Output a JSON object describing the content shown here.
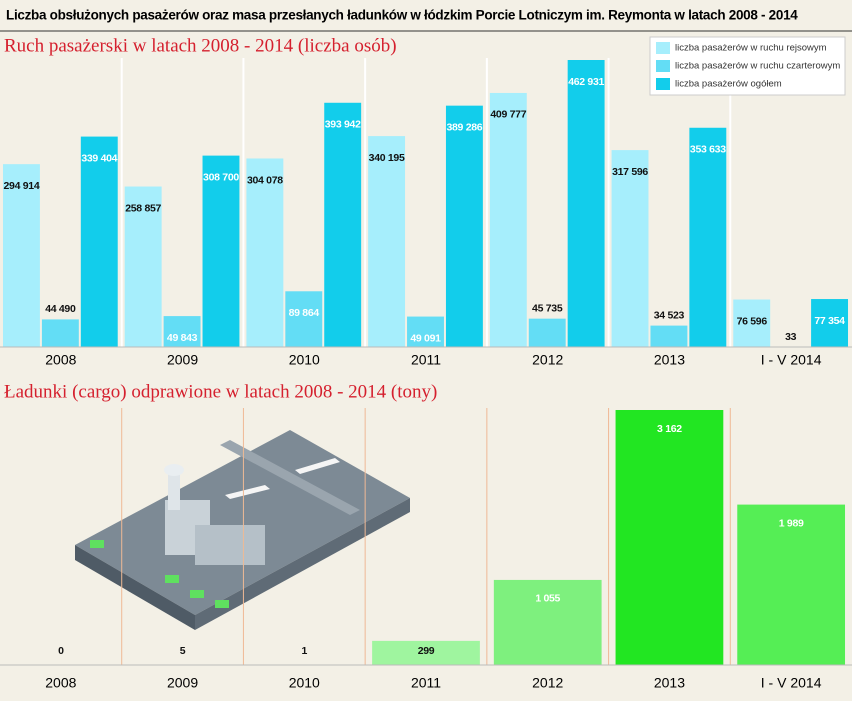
{
  "title": "Liczba obsłużonych pasażerów oraz masa przesłanych ładunków w łódzkim Porcie Lotniczym im. Reymonta w latach 2008 - 2014",
  "chart_data": [
    {
      "type": "bar",
      "title": "Ruch pasażerski w latach 2008 - 2014 (liczba osób)",
      "categories": [
        "2008",
        "2009",
        "2010",
        "2011",
        "2012",
        "2013",
        "I - V 2014"
      ],
      "legend": "top-right",
      "series": [
        {
          "name": "liczba pasażerów w ruchu rejsowym",
          "color": "#a6eefc",
          "values": [
            294914,
            258857,
            304078,
            340195,
            409777,
            317596,
            76596
          ],
          "value_labels": [
            "294 914",
            "258 857",
            "304 078",
            "340 195",
            "409 777",
            "317 596",
            "76 596"
          ]
        },
        {
          "name": "liczba pasażerów w ruchu czarterowym",
          "color": "#63ddf5",
          "values": [
            44490,
            49843,
            89864,
            49091,
            45735,
            34523,
            33
          ],
          "value_labels": [
            "44 490",
            "49 843",
            "89 864",
            "49 091",
            "45 735",
            "34 523",
            "33"
          ]
        },
        {
          "name": "liczba pasażerów ogółem",
          "color": "#12cdeb",
          "values": [
            339404,
            308700,
            393942,
            389286,
            462931,
            353633,
            77354
          ],
          "value_labels": [
            "339 404",
            "308 700",
            "393 942",
            "389 286",
            "462 931",
            "353 633",
            "77 354"
          ]
        }
      ]
    },
    {
      "type": "bar",
      "title": "Ładunki (cargo) odprawione w latach 2008 - 2014 (tony)",
      "categories": [
        "2008",
        "2009",
        "2010",
        "2011",
        "2012",
        "2013",
        "I - V 2014"
      ],
      "values": [
        0,
        5,
        1,
        299,
        1055,
        3162,
        1989
      ],
      "value_labels": [
        "0",
        "5",
        "1",
        "299",
        "1 055",
        "3 162",
        "1 989"
      ],
      "colors": [
        "#9ff59f",
        "#9ff59f",
        "#9ff59f",
        "#9ff59f",
        "#7ef07e",
        "#22e622",
        "#55ee55"
      ]
    }
  ]
}
